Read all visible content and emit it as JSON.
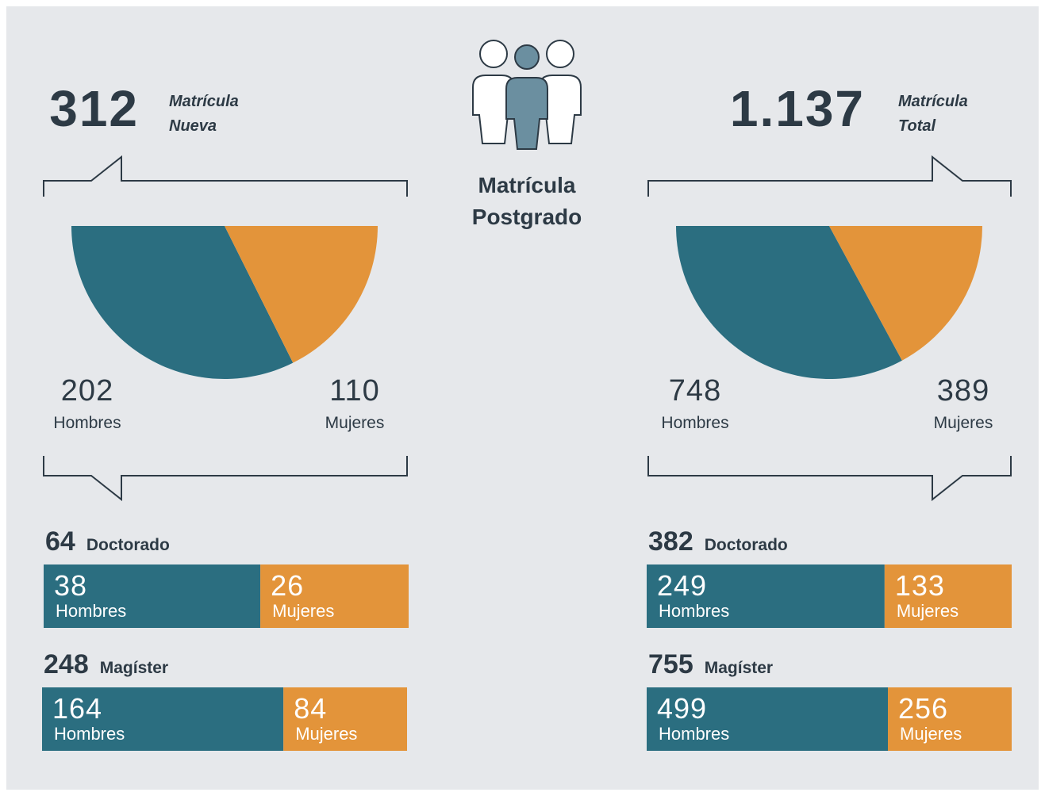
{
  "title": "Matrícula Postgrado",
  "panels": [
    {
      "total": 312,
      "label": "Matrícula Nueva",
      "men": 202,
      "men_label": "Hombres",
      "women": 110,
      "women_label": "Mujeres",
      "programs": [
        {
          "total": 64,
          "name": "Doctorado",
          "men": 38,
          "men_label": "Hombres",
          "women": 26,
          "women_label": "Mujeres"
        },
        {
          "total": 248,
          "name": "Magíster",
          "men": 164,
          "men_label": "Hombres",
          "women": 84,
          "women_label": "Mujeres"
        }
      ]
    },
    {
      "total": {
        "value": 1137,
        "label": "1.137"
      },
      "label": "Matrícula Total",
      "men": 748,
      "men_label": "Hombres",
      "women": 389,
      "women_label": "Mujeres",
      "programs": [
        {
          "total": 382,
          "name": "Doctorado",
          "men": 249,
          "men_label": "Hombres",
          "women": 133,
          "women_label": "Mujeres"
        },
        {
          "total": 755,
          "name": "Magíster",
          "men": 499,
          "men_label": "Hombres",
          "women": 256,
          "women_label": "Mujeres"
        }
      ]
    }
  ],
  "colors": {
    "men": "#2b6e80",
    "women": "#e3943a"
  }
}
